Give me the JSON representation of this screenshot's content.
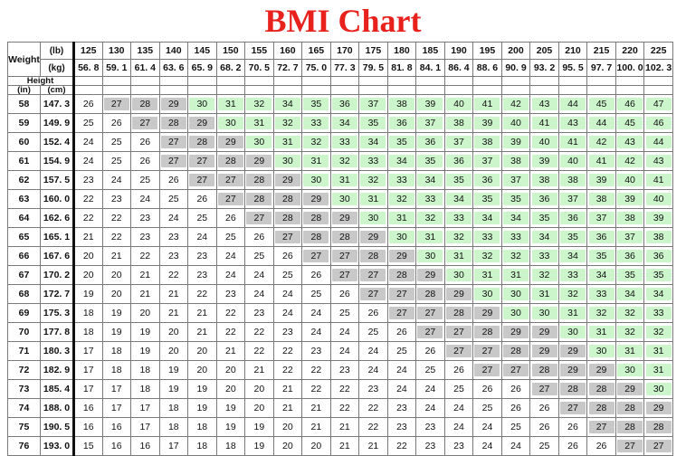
{
  "title": "BMI Chart",
  "colors": {
    "title": "#e8211d",
    "underweight": "#ffffff",
    "normal": "#c8c8c8",
    "overweight": "#ffffff",
    "obese": "#ccf5cc"
  },
  "header": {
    "weight_label": "Weight",
    "lb_unit": "(lb)",
    "kg_unit": "(kg)",
    "height_label": "Height",
    "in_unit": "(in)",
    "cm_unit": "(cm)",
    "lb": [
      "125",
      "130",
      "135",
      "140",
      "145",
      "150",
      "155",
      "160",
      "165",
      "170",
      "175",
      "180",
      "185",
      "190",
      "195",
      "200",
      "205",
      "210",
      "215",
      "220",
      "225"
    ],
    "kg": [
      "56. 8",
      "59. 1",
      "61. 4",
      "63. 6",
      "65. 9",
      "68. 2",
      "70. 5",
      "72. 7",
      "75. 0",
      "77. 3",
      "79. 5",
      "81. 8",
      "84. 1",
      "86. 4",
      "88. 6",
      "90. 9",
      "93. 2",
      "95. 5",
      "97. 7",
      "100. 0",
      "102. 3"
    ]
  },
  "rows": [
    {
      "in": "58",
      "cm": "147. 3",
      "bmi": [
        26,
        27,
        28,
        29,
        30,
        31,
        32,
        34,
        35,
        36,
        37,
        38,
        39,
        40,
        41,
        42,
        43,
        44,
        45,
        46,
        47
      ]
    },
    {
      "in": "59",
      "cm": "149. 9",
      "bmi": [
        25,
        26,
        27,
        28,
        29,
        30,
        31,
        32,
        33,
        34,
        35,
        36,
        37,
        38,
        39,
        40,
        41,
        43,
        44,
        45,
        46
      ]
    },
    {
      "in": "60",
      "cm": "152. 4",
      "bmi": [
        24,
        25,
        26,
        27,
        28,
        29,
        30,
        31,
        32,
        33,
        34,
        35,
        36,
        37,
        38,
        39,
        40,
        41,
        42,
        43,
        44
      ]
    },
    {
      "in": "61",
      "cm": "154. 9",
      "bmi": [
        24,
        25,
        26,
        27,
        27,
        28,
        29,
        30,
        31,
        32,
        33,
        34,
        35,
        36,
        37,
        38,
        39,
        40,
        41,
        42,
        43
      ]
    },
    {
      "in": "62",
      "cm": "157. 5",
      "bmi": [
        23,
        24,
        25,
        26,
        27,
        27,
        28,
        29,
        30,
        31,
        32,
        33,
        34,
        35,
        36,
        37,
        38,
        38,
        39,
        40,
        41
      ]
    },
    {
      "in": "63",
      "cm": "160. 0",
      "bmi": [
        22,
        23,
        24,
        25,
        26,
        27,
        28,
        28,
        29,
        30,
        31,
        32,
        33,
        34,
        35,
        35,
        36,
        37,
        38,
        39,
        40
      ]
    },
    {
      "in": "64",
      "cm": "162. 6",
      "bmi": [
        22,
        22,
        23,
        24,
        25,
        26,
        27,
        28,
        28,
        29,
        30,
        31,
        32,
        33,
        34,
        34,
        35,
        36,
        37,
        38,
        39
      ]
    },
    {
      "in": "65",
      "cm": "165. 1",
      "bmi": [
        21,
        22,
        23,
        23,
        24,
        25,
        26,
        27,
        28,
        28,
        29,
        30,
        31,
        32,
        33,
        33,
        34,
        35,
        36,
        37,
        38
      ]
    },
    {
      "in": "66",
      "cm": "167. 6",
      "bmi": [
        20,
        21,
        22,
        23,
        23,
        24,
        25,
        26,
        27,
        27,
        28,
        29,
        30,
        31,
        32,
        32,
        33,
        34,
        35,
        36,
        36
      ]
    },
    {
      "in": "67",
      "cm": "170. 2",
      "bmi": [
        20,
        20,
        21,
        22,
        23,
        24,
        24,
        25,
        26,
        27,
        27,
        28,
        29,
        30,
        31,
        31,
        32,
        33,
        34,
        35,
        35
      ]
    },
    {
      "in": "68",
      "cm": "172. 7",
      "bmi": [
        19,
        20,
        21,
        21,
        22,
        23,
        24,
        24,
        25,
        26,
        27,
        27,
        28,
        29,
        30,
        30,
        31,
        32,
        33,
        34,
        34
      ]
    },
    {
      "in": "69",
      "cm": "175. 3",
      "bmi": [
        18,
        19,
        20,
        21,
        21,
        22,
        23,
        24,
        24,
        25,
        26,
        27,
        27,
        28,
        29,
        30,
        30,
        31,
        32,
        32,
        33
      ]
    },
    {
      "in": "70",
      "cm": "177. 8",
      "bmi": [
        18,
        19,
        19,
        20,
        21,
        22,
        22,
        23,
        24,
        24,
        25,
        26,
        27,
        27,
        28,
        29,
        29,
        30,
        31,
        32,
        32
      ]
    },
    {
      "in": "71",
      "cm": "180. 3",
      "bmi": [
        17,
        18,
        19,
        20,
        20,
        21,
        22,
        22,
        23,
        24,
        24,
        25,
        26,
        27,
        27,
        28,
        29,
        29,
        30,
        31,
        31
      ]
    },
    {
      "in": "72",
      "cm": "182. 9",
      "bmi": [
        17,
        18,
        18,
        19,
        20,
        20,
        21,
        22,
        22,
        23,
        24,
        24,
        25,
        26,
        27,
        27,
        28,
        29,
        29,
        30,
        31
      ]
    },
    {
      "in": "73",
      "cm": "185. 4",
      "bmi": [
        17,
        17,
        18,
        19,
        19,
        20,
        20,
        21,
        22,
        22,
        23,
        24,
        24,
        25,
        26,
        26,
        27,
        28,
        28,
        29,
        30
      ]
    },
    {
      "in": "74",
      "cm": "188. 0",
      "bmi": [
        16,
        17,
        17,
        18,
        19,
        19,
        20,
        21,
        21,
        22,
        22,
        23,
        24,
        24,
        25,
        26,
        26,
        27,
        28,
        28,
        29
      ]
    },
    {
      "in": "75",
      "cm": "190. 5",
      "bmi": [
        16,
        16,
        17,
        18,
        18,
        19,
        19,
        20,
        21,
        21,
        22,
        23,
        23,
        24,
        24,
        25,
        26,
        26,
        27,
        28,
        28
      ]
    },
    {
      "in": "76",
      "cm": "193. 0",
      "bmi": [
        15,
        16,
        16,
        17,
        18,
        18,
        19,
        20,
        20,
        21,
        21,
        22,
        23,
        23,
        24,
        24,
        25,
        26,
        26,
        27,
        27
      ]
    }
  ]
}
